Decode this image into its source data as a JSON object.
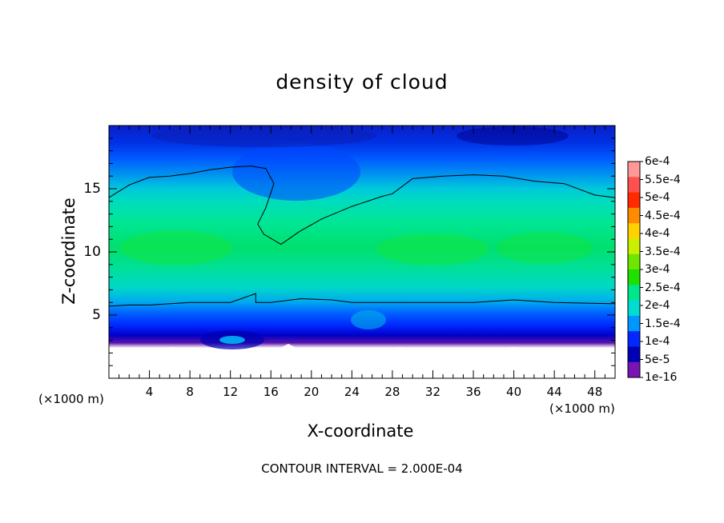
{
  "chart_data": {
    "type": "heatmap",
    "title": "density of cloud",
    "xlabel": "X-coordinate",
    "ylabel": "Z-coordinate",
    "x_unit_left": "(×1000 m)",
    "x_unit_right": "(×1000 m)",
    "note": "CONTOUR INTERVAL = 2.000E-04",
    "xlim": [
      0,
      50
    ],
    "ylim": [
      0,
      20
    ],
    "x_ticks": [
      "4",
      "8",
      "12",
      "16",
      "20",
      "24",
      "28",
      "32",
      "36",
      "40",
      "44",
      "48"
    ],
    "y_ticks": [
      "5",
      "10",
      "15"
    ],
    "colorbar": {
      "labels": [
        "6e-4",
        "5.5e-4",
        "5e-4",
        "4.5e-4",
        "4e-4",
        "3.5e-4",
        "3e-4",
        "2.5e-4",
        "2e-4",
        "1.5e-4",
        "1e-4",
        "5e-5",
        "1e-16"
      ],
      "colors": [
        "#ff9999",
        "#ff5050",
        "#ff2a00",
        "#ff8c00",
        "#ffd200",
        "#c8f000",
        "#6ee600",
        "#1ee000",
        "#00e68c",
        "#00dcd2",
        "#0096ff",
        "#0028ff",
        "#0000b4",
        "#7814b4"
      ]
    },
    "contour_level": "2e-4",
    "upper_contour": [
      [
        0,
        14.3
      ],
      [
        2,
        15.3
      ],
      [
        4,
        15.9
      ],
      [
        6,
        16.0
      ],
      [
        8,
        16.2
      ],
      [
        10,
        16.5
      ],
      [
        12,
        16.7
      ],
      [
        14,
        16.8
      ],
      [
        15.5,
        16.6
      ],
      [
        16.3,
        15.4
      ],
      [
        15.5,
        13.5
      ],
      [
        14.7,
        12.2
      ],
      [
        15.3,
        11.4
      ],
      [
        17,
        10.6
      ],
      [
        18.8,
        11.6
      ],
      [
        21,
        12.6
      ],
      [
        24,
        13.6
      ],
      [
        27,
        14.4
      ],
      [
        28,
        14.6
      ],
      [
        30,
        15.8
      ],
      [
        33,
        16.0
      ],
      [
        36,
        16.1
      ],
      [
        39,
        16.0
      ],
      [
        42,
        15.6
      ],
      [
        45,
        15.4
      ],
      [
        48,
        14.5
      ],
      [
        50,
        14.3
      ]
    ],
    "lower_contour": [
      [
        0,
        5.7
      ],
      [
        2,
        5.8
      ],
      [
        4,
        5.8
      ],
      [
        8,
        6.0
      ],
      [
        12,
        6.0
      ],
      [
        14.5,
        6.7
      ],
      [
        14.5,
        6.0
      ],
      [
        16,
        6.0
      ],
      [
        19,
        6.3
      ],
      [
        22,
        6.2
      ],
      [
        24,
        6.0
      ],
      [
        30,
        6.0
      ],
      [
        36,
        6.0
      ],
      [
        40,
        6.2
      ],
      [
        44,
        6.0
      ],
      [
        50,
        5.9
      ]
    ]
  }
}
